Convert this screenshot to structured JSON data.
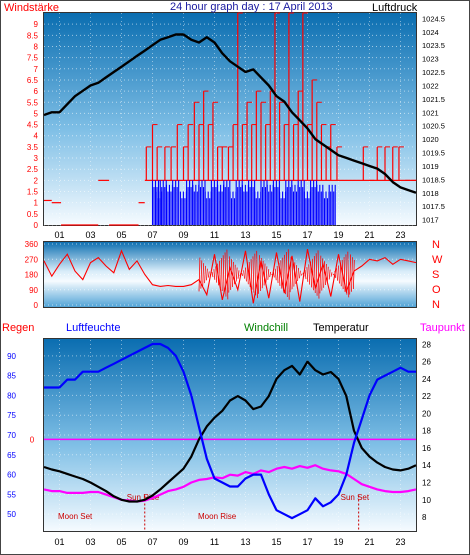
{
  "title": "24 hour graph day : 17 April 2013",
  "colors": {
    "wind": "#ff0000",
    "gust": "#0000ff",
    "pressure": "#000000",
    "direction": "#ff0000",
    "humidity": "#0000ff",
    "windchill": "#008000",
    "temperature": "#000000",
    "dewpoint": "#ff00ff",
    "rain": "#ff0000",
    "sky_top": "#0b6fb3",
    "sky_bottom": "#f4fbff"
  },
  "chart_data": [
    {
      "type": "bar",
      "label_left": "Windstärke",
      "label_right": "Luftdruck",
      "x_ticks": [
        "01",
        "03",
        "05",
        "07",
        "09",
        "11",
        "13",
        "15",
        "17",
        "19",
        "21",
        "23"
      ],
      "wind_ticks": [
        "0",
        "0.5",
        "1",
        "1.5",
        "2",
        "2.5",
        "3",
        "3.5",
        "4",
        "4.5",
        "5",
        "5.5",
        "6",
        "6.5",
        "7",
        "7.5",
        "8",
        "8.5",
        "9"
      ],
      "pressure_ticks": [
        "1017",
        "1017.5",
        "1018",
        "1018.5",
        "1019",
        "1019.5",
        "1020",
        "1020.5",
        "1021",
        "1021.5",
        "1022",
        "1022.5",
        "1023",
        "1023.5",
        "1024",
        "1024.5"
      ],
      "ylim_wind": [
        0,
        9.5
      ],
      "ylim_pressure": [
        1016.8,
        1024.7
      ],
      "wind_segments": [
        [
          0,
          0.5,
          1.1
        ],
        [
          0.5,
          1.1,
          1
        ],
        [
          1.1,
          3.5,
          0
        ],
        [
          3.5,
          4.2,
          2
        ],
        [
          4.2,
          6.1,
          0
        ],
        [
          6.1,
          6.5,
          1
        ],
        [
          6.5,
          7.0,
          2
        ],
        [
          7.0,
          8.0,
          2
        ],
        [
          8.0,
          9.0,
          2
        ],
        [
          9.0,
          10.0,
          2
        ],
        [
          10.0,
          11.0,
          2
        ],
        [
          11.0,
          12.0,
          2
        ],
        [
          12.0,
          13.0,
          2
        ],
        [
          13.0,
          14.0,
          2
        ],
        [
          14.0,
          15.0,
          2
        ],
        [
          15.0,
          16.0,
          2
        ],
        [
          16.0,
          17.0,
          2
        ],
        [
          17.0,
          18.0,
          2
        ],
        [
          18.0,
          19.0,
          2
        ],
        [
          19.0,
          20.0,
          2
        ],
        [
          20.0,
          21.0,
          2
        ],
        [
          21.0,
          22.0,
          2
        ],
        [
          22.0,
          23.0,
          2
        ],
        [
          23.0,
          24.0,
          2
        ]
      ],
      "wind_spikes": [
        [
          6.6,
          3.5
        ],
        [
          7.0,
          4.5
        ],
        [
          7.3,
          3.5
        ],
        [
          7.8,
          3.5
        ],
        [
          8.2,
          3.5
        ],
        [
          8.6,
          4.5
        ],
        [
          9.0,
          3.5
        ],
        [
          9.3,
          4.5
        ],
        [
          9.7,
          5.5
        ],
        [
          10.0,
          4.5
        ],
        [
          10.3,
          6
        ],
        [
          10.6,
          4.5
        ],
        [
          10.9,
          5.5
        ],
        [
          11.2,
          3.5
        ],
        [
          11.5,
          3.5
        ],
        [
          11.9,
          3.5
        ],
        [
          12.2,
          4.5
        ],
        [
          12.5,
          9.5
        ],
        [
          12.8,
          4.5
        ],
        [
          13.1,
          5.5
        ],
        [
          13.4,
          4.5
        ],
        [
          13.7,
          6
        ],
        [
          14.0,
          5.5
        ],
        [
          14.3,
          4.5
        ],
        [
          14.6,
          6
        ],
        [
          14.9,
          9.5
        ],
        [
          15.2,
          5.5
        ],
        [
          15.5,
          4.5
        ],
        [
          15.8,
          9.5
        ],
        [
          16.1,
          4.5
        ],
        [
          16.4,
          6
        ],
        [
          16.7,
          9.5
        ],
        [
          17.0,
          4.5
        ],
        [
          17.3,
          6.5
        ],
        [
          17.6,
          5.5
        ],
        [
          17.9,
          4.5
        ],
        [
          18.2,
          3.5
        ],
        [
          18.5,
          4.5
        ],
        [
          18.9,
          3.5
        ],
        [
          20.6,
          3.5
        ],
        [
          21.0,
          2
        ],
        [
          21.5,
          3.5
        ],
        [
          22.0,
          3.5
        ],
        [
          22.5,
          3.5
        ],
        [
          22.9,
          3.5
        ],
        [
          23.3,
          2
        ],
        [
          23.7,
          2
        ]
      ],
      "gust_spikes": [
        [
          7.0,
          2
        ],
        [
          7.2,
          1.5
        ],
        [
          7.5,
          2
        ],
        [
          7.9,
          1.8
        ],
        [
          8.3,
          2
        ],
        [
          8.8,
          1.5
        ],
        [
          9.2,
          2
        ],
        [
          9.6,
          1.8
        ],
        [
          10.0,
          2
        ],
        [
          10.4,
          1.5
        ],
        [
          10.8,
          2
        ],
        [
          11.2,
          1.8
        ],
        [
          11.6,
          2
        ],
        [
          12.0,
          1.5
        ],
        [
          12.4,
          2
        ],
        [
          12.8,
          1.8
        ],
        [
          13.2,
          2
        ],
        [
          13.6,
          1.5
        ],
        [
          14.0,
          2
        ],
        [
          14.4,
          1.8
        ],
        [
          14.8,
          2
        ],
        [
          15.2,
          1.5
        ],
        [
          15.6,
          2
        ],
        [
          16.0,
          1.8
        ],
        [
          16.4,
          2
        ],
        [
          16.8,
          1.5
        ],
        [
          17.2,
          2
        ],
        [
          17.6,
          1.8
        ],
        [
          18.0,
          1.5
        ],
        [
          18.4,
          1.8
        ]
      ],
      "pressure_x": [
        0,
        0.5,
        1,
        1.5,
        2,
        2.5,
        3,
        3.5,
        4,
        4.5,
        5,
        5.5,
        6,
        6.5,
        7,
        7.5,
        8,
        8.5,
        9,
        9.5,
        10,
        10.5,
        11,
        11.5,
        12,
        12.5,
        13,
        13.5,
        14,
        14.5,
        15,
        15.5,
        16,
        16.5,
        17,
        17.5,
        18,
        18.5,
        19,
        19.5,
        20,
        20.5,
        21,
        21.5,
        22,
        22.5,
        23,
        23.5,
        24
      ],
      "pressure": [
        1020.9,
        1021.0,
        1021.0,
        1021.3,
        1021.6,
        1021.8,
        1022.0,
        1022.1,
        1022.3,
        1022.5,
        1022.7,
        1022.9,
        1023.1,
        1023.3,
        1023.5,
        1023.7,
        1023.8,
        1023.9,
        1023.9,
        1023.7,
        1023.6,
        1023.8,
        1023.6,
        1023.2,
        1022.9,
        1022.7,
        1022.5,
        1022.6,
        1022.3,
        1022.0,
        1021.6,
        1021.4,
        1021.0,
        1020.7,
        1020.4,
        1020.0,
        1019.8,
        1019.6,
        1019.4,
        1019.3,
        1019.2,
        1019.1,
        1019.0,
        1018.9,
        1018.7,
        1018.4,
        1018.2,
        1018.1,
        1018.0
      ]
    },
    {
      "type": "line",
      "ticks": [
        "360",
        "270",
        "180",
        "90",
        "0"
      ],
      "direction_labels": [
        "N",
        "W",
        "S",
        "O",
        "N"
      ],
      "ylim": [
        0,
        360
      ],
      "x": [
        0,
        0.5,
        1,
        1.5,
        2,
        2.5,
        3,
        3.5,
        4,
        4.5,
        5,
        5.5,
        6,
        6.5,
        7,
        7.5,
        8,
        8.5,
        9,
        9.5,
        10,
        10.5,
        11,
        11.5,
        12,
        12.5,
        13,
        13.5,
        14,
        14.5,
        15,
        15.5,
        16,
        16.5,
        17,
        17.5,
        18,
        18.5,
        19,
        19.5,
        20,
        20.5,
        21,
        21.5,
        22,
        22.5,
        23,
        23.5,
        24
      ],
      "direction": [
        260,
        170,
        240,
        300,
        200,
        150,
        250,
        280,
        230,
        190,
        320,
        210,
        260,
        180,
        120,
        110,
        115,
        110,
        110,
        120,
        150,
        60,
        300,
        30,
        220,
        90,
        320,
        10,
        260,
        40,
        310,
        70,
        290,
        20,
        330,
        100,
        240,
        50,
        300,
        80,
        200,
        230,
        270,
        260,
        280,
        240,
        270,
        260,
        250
      ]
    },
    {
      "type": "line",
      "labels": {
        "rain": "Regen",
        "humidity": "Luftfeuchte",
        "windchill": "Windchill",
        "temperature": "Temperatur",
        "dewpoint": "Taupunkt"
      },
      "left_ticks": [
        "50",
        "55",
        "60",
        "65",
        "70",
        "75",
        "80",
        "85",
        "90"
      ],
      "mid_ticks": [
        "0"
      ],
      "right_ticks": [
        "8",
        "10",
        "12",
        "14",
        "16",
        "18",
        "20",
        "22",
        "24",
        "26",
        "28"
      ],
      "ylim_humidity": [
        46,
        94
      ],
      "ylim_temp": [
        6.5,
        28.5
      ],
      "annotations": {
        "sun_rise": "Sun Rise",
        "sun_set": "Sun Set",
        "moon_set": "Moon Set",
        "moon_rise": "Moon Rise"
      },
      "x": [
        0,
        0.5,
        1,
        1.5,
        2,
        2.5,
        3,
        3.5,
        4,
        4.5,
        5,
        5.5,
        6,
        6.5,
        7,
        7.5,
        8,
        8.5,
        9,
        9.5,
        10,
        10.5,
        11,
        11.5,
        12,
        12.5,
        13,
        13.5,
        14,
        14.5,
        15,
        15.5,
        16,
        16.5,
        17,
        17.5,
        18,
        18.5,
        19,
        19.5,
        20,
        20.5,
        21,
        21.5,
        22,
        22.5,
        23,
        23.5,
        24
      ],
      "humidity": [
        82,
        82,
        82,
        84,
        84,
        86,
        86,
        86,
        87,
        88,
        89,
        90,
        91,
        92,
        93,
        93,
        92,
        90,
        86,
        80,
        72,
        64,
        59,
        58,
        57,
        57,
        59,
        60,
        60,
        55,
        51,
        50,
        49,
        50,
        51,
        54,
        52,
        53,
        55,
        60,
        68,
        74,
        80,
        84,
        85,
        86,
        87,
        86,
        86
      ],
      "temperature": [
        13.8,
        13.5,
        13.3,
        13.0,
        12.7,
        12.4,
        12.0,
        11.5,
        11.0,
        10.4,
        10.0,
        9.8,
        9.8,
        10.0,
        10.5,
        11.2,
        12.0,
        12.8,
        13.6,
        15.0,
        17.0,
        18.5,
        19.5,
        20.3,
        21.5,
        22.0,
        21.5,
        20.5,
        20.8,
        22.0,
        24.0,
        25.0,
        25.5,
        24.5,
        26.0,
        25.0,
        24.5,
        24.8,
        24.0,
        22.0,
        18.0,
        16.0,
        15.0,
        14.3,
        13.8,
        13.5,
        13.4,
        13.6,
        14.0
      ],
      "dewpoint": [
        11.2,
        11.0,
        11.0,
        10.8,
        10.8,
        10.8,
        10.9,
        10.9,
        10.6,
        10.3,
        10.0,
        9.9,
        9.8,
        9.9,
        10.2,
        10.6,
        11.0,
        11.2,
        11.5,
        12.0,
        12.3,
        12.4,
        12.6,
        12.5,
        12.9,
        12.8,
        13.2,
        13.0,
        13.4,
        13.2,
        13.6,
        13.8,
        13.6,
        13.9,
        13.7,
        14.0,
        13.6,
        13.4,
        13.3,
        13.0,
        12.4,
        11.8,
        11.5,
        11.2,
        11.0,
        10.9,
        10.9,
        11.0,
        11.2
      ],
      "rain": [
        0,
        0,
        0,
        0,
        0,
        0,
        0,
        0,
        0,
        0,
        0,
        0,
        0,
        0,
        0,
        0,
        0,
        0,
        0,
        0,
        0,
        0,
        0,
        0,
        0,
        0,
        0,
        0,
        0,
        0,
        0,
        0,
        0,
        0,
        0,
        0,
        0,
        0,
        0,
        0,
        0,
        0,
        0,
        0,
        0,
        0,
        0,
        0,
        0
      ]
    }
  ]
}
